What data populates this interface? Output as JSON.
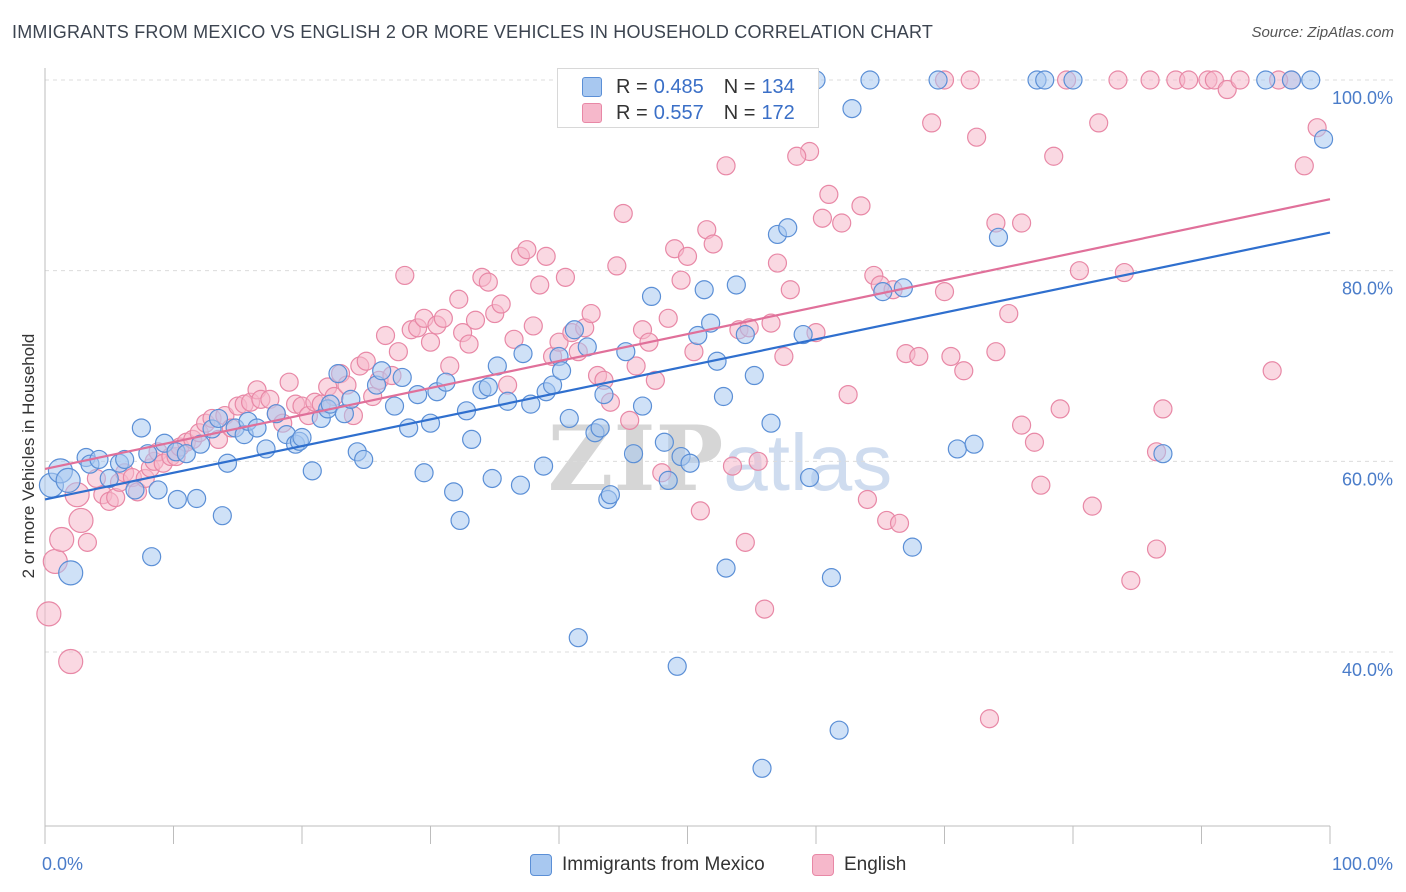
{
  "title": "IMMIGRANTS FROM MEXICO VS ENGLISH 2 OR MORE VEHICLES IN HOUSEHOLD CORRELATION CHART",
  "source": "Source: ZipAtlas.com",
  "watermark": "ZIPatlas",
  "colors": {
    "blue_fill": "#a8c8f0",
    "blue_stroke": "#5b8fd6",
    "blue_line": "#2f6fce",
    "pink_fill": "#f6b8cb",
    "pink_stroke": "#e888a6",
    "pink_line": "#e0709a",
    "tick": "#4a7cc9",
    "grid": "#dcdcdc"
  },
  "legend": {
    "rows": [
      {
        "r_label": "R =",
        "r_value": "0.485",
        "n_label": "N =",
        "n_value": "134"
      },
      {
        "r_label": "R =",
        "r_value": "0.557",
        "n_label": "N =",
        "n_value": "172"
      }
    ],
    "bottom": [
      "Immigrants from Mexico",
      "English"
    ]
  },
  "chart_data": {
    "type": "scatter",
    "title": "IMMIGRANTS FROM MEXICO VS ENGLISH 2 OR MORE VEHICLES IN HOUSEHOLD CORRELATION CHART",
    "xlabel": "",
    "ylabel": "2 or more Vehicles in Household",
    "xlim": [
      0,
      100
    ],
    "ylim": [
      20,
      102
    ],
    "x_tick_labels": [
      "0.0%",
      "100.0%"
    ],
    "y_ticks": [
      40,
      60,
      80,
      100
    ],
    "y_tick_labels": [
      "40.0%",
      "60.0%",
      "80.0%",
      "100.0%"
    ],
    "grid": "horizontal dashed",
    "legend_position": "top-center",
    "series": [
      {
        "name": "Immigrants from Mexico",
        "R": 0.485,
        "N": 134,
        "trend": [
          [
            0,
            56.0
          ],
          [
            100,
            84.0
          ]
        ],
        "points": [
          [
            0.5,
            57.5
          ],
          [
            1.2,
            59.0
          ],
          [
            1.8,
            58.0
          ],
          [
            2.0,
            48.3
          ],
          [
            3.2,
            60.4
          ],
          [
            3.5,
            59.7
          ],
          [
            4.2,
            60.2
          ],
          [
            5.0,
            58.2
          ],
          [
            5.8,
            59.8
          ],
          [
            6.2,
            60.2
          ],
          [
            7.0,
            57.0
          ],
          [
            7.5,
            63.5
          ],
          [
            8.0,
            60.8
          ],
          [
            8.3,
            50.0
          ],
          [
            8.8,
            57.0
          ],
          [
            9.3,
            61.9
          ],
          [
            10.2,
            61.0
          ],
          [
            10.3,
            56.0
          ],
          [
            11.0,
            60.8
          ],
          [
            11.8,
            56.1
          ],
          [
            12.1,
            61.8
          ],
          [
            13.0,
            63.4
          ],
          [
            13.5,
            64.5
          ],
          [
            13.8,
            54.3
          ],
          [
            14.2,
            59.8
          ],
          [
            14.8,
            63.5
          ],
          [
            15.5,
            62.8
          ],
          [
            15.8,
            64.2
          ],
          [
            16.5,
            63.5
          ],
          [
            17.2,
            61.3
          ],
          [
            18.0,
            65.0
          ],
          [
            18.8,
            62.8
          ],
          [
            19.5,
            61.8
          ],
          [
            19.8,
            62.1
          ],
          [
            20.0,
            62.5
          ],
          [
            20.8,
            59.0
          ],
          [
            21.5,
            64.5
          ],
          [
            22.0,
            65.5
          ],
          [
            22.2,
            66.0
          ],
          [
            22.8,
            69.2
          ],
          [
            23.3,
            65.0
          ],
          [
            23.8,
            66.5
          ],
          [
            24.3,
            61.0
          ],
          [
            24.8,
            60.2
          ],
          [
            25.8,
            68.0
          ],
          [
            26.2,
            69.5
          ],
          [
            27.2,
            65.8
          ],
          [
            27.8,
            68.8
          ],
          [
            28.3,
            63.5
          ],
          [
            29.0,
            67.0
          ],
          [
            29.5,
            58.8
          ],
          [
            30.0,
            64.0
          ],
          [
            30.5,
            67.3
          ],
          [
            31.2,
            68.3
          ],
          [
            31.8,
            56.8
          ],
          [
            32.3,
            53.8
          ],
          [
            32.8,
            65.3
          ],
          [
            33.2,
            62.3
          ],
          [
            34.0,
            67.5
          ],
          [
            34.5,
            67.8
          ],
          [
            34.8,
            58.2
          ],
          [
            35.2,
            70.0
          ],
          [
            36.0,
            66.3
          ],
          [
            37.0,
            57.5
          ],
          [
            37.2,
            71.3
          ],
          [
            37.8,
            66.0
          ],
          [
            38.8,
            59.5
          ],
          [
            39.0,
            67.3
          ],
          [
            39.5,
            68.0
          ],
          [
            40.0,
            71.0
          ],
          [
            40.2,
            69.5
          ],
          [
            40.8,
            64.5
          ],
          [
            41.2,
            73.8
          ],
          [
            41.5,
            41.5
          ],
          [
            42.2,
            72.0
          ],
          [
            42.8,
            63.0
          ],
          [
            43.5,
            67.0
          ],
          [
            43.8,
            56.0
          ],
          [
            43.2,
            63.5
          ],
          [
            44.0,
            56.5
          ],
          [
            45.2,
            71.5
          ],
          [
            45.8,
            60.8
          ],
          [
            46.5,
            65.8
          ],
          [
            47.2,
            77.3
          ],
          [
            48.2,
            62.0
          ],
          [
            48.5,
            58.0
          ],
          [
            49.2,
            38.5
          ],
          [
            49.5,
            60.5
          ],
          [
            50.2,
            59.8
          ],
          [
            50.8,
            73.2
          ],
          [
            51.3,
            78.0
          ],
          [
            51.8,
            74.5
          ],
          [
            52.3,
            70.5
          ],
          [
            52.8,
            66.8
          ],
          [
            53.0,
            48.8
          ],
          [
            53.8,
            78.5
          ],
          [
            54.5,
            73.3
          ],
          [
            55.2,
            69.0
          ],
          [
            55.8,
            27.8
          ],
          [
            56.5,
            64.0
          ],
          [
            57.0,
            83.8
          ],
          [
            57.8,
            84.5
          ],
          [
            59.0,
            73.3
          ],
          [
            59.5,
            58.3
          ],
          [
            61.2,
            47.8
          ],
          [
            61.8,
            31.8
          ],
          [
            62.8,
            97.0
          ],
          [
            64.2,
            100.0
          ],
          [
            65.2,
            77.8
          ],
          [
            66.8,
            78.2
          ],
          [
            67.5,
            51.0
          ],
          [
            69.5,
            100.0
          ],
          [
            71.0,
            61.3
          ],
          [
            72.3,
            61.8
          ],
          [
            74.2,
            83.5
          ],
          [
            77.2,
            100.0
          ],
          [
            77.8,
            100.0
          ],
          [
            87.0,
            60.8
          ],
          [
            95.0,
            100.0
          ],
          [
            97.0,
            100.0
          ],
          [
            98.5,
            100.0
          ],
          [
            99.5,
            93.8
          ],
          [
            56.0,
            100.0
          ],
          [
            60.0,
            100.0
          ],
          [
            47.0,
            100.0
          ],
          [
            80.0,
            100.0
          ]
        ]
      },
      {
        "name": "English",
        "R": 0.557,
        "N": 172,
        "trend": [
          [
            0,
            59.2
          ],
          [
            100,
            87.5
          ]
        ],
        "points": [
          [
            0.3,
            44.0
          ],
          [
            0.8,
            49.5
          ],
          [
            1.3,
            51.8
          ],
          [
            2.0,
            39.0
          ],
          [
            2.5,
            56.5
          ],
          [
            2.8,
            53.8
          ],
          [
            3.3,
            51.5
          ],
          [
            4.0,
            58.2
          ],
          [
            4.5,
            56.5
          ],
          [
            5.0,
            55.8
          ],
          [
            5.5,
            56.2
          ],
          [
            5.8,
            57.8
          ],
          [
            6.2,
            58.8
          ],
          [
            6.8,
            58.3
          ],
          [
            7.2,
            56.8
          ],
          [
            7.8,
            58.2
          ],
          [
            8.2,
            59.3
          ],
          [
            8.5,
            60.0
          ],
          [
            8.8,
            61.0
          ],
          [
            9.2,
            59.8
          ],
          [
            9.8,
            60.5
          ],
          [
            10.2,
            60.5
          ],
          [
            10.5,
            61.5
          ],
          [
            11.0,
            62.0
          ],
          [
            11.5,
            62.3
          ],
          [
            12.0,
            63.0
          ],
          [
            12.5,
            64.0
          ],
          [
            13.0,
            64.5
          ],
          [
            13.5,
            62.3
          ],
          [
            14.0,
            64.8
          ],
          [
            14.5,
            63.5
          ],
          [
            15.0,
            65.8
          ],
          [
            15.5,
            66.0
          ],
          [
            16.0,
            66.2
          ],
          [
            16.5,
            67.5
          ],
          [
            16.8,
            66.5
          ],
          [
            17.5,
            66.5
          ],
          [
            18.0,
            65.0
          ],
          [
            18.5,
            64.0
          ],
          [
            19.0,
            68.3
          ],
          [
            19.5,
            66.0
          ],
          [
            20.0,
            65.8
          ],
          [
            20.5,
            64.8
          ],
          [
            21.0,
            66.2
          ],
          [
            21.5,
            66.0
          ],
          [
            22.0,
            67.8
          ],
          [
            22.5,
            66.8
          ],
          [
            23.0,
            69.2
          ],
          [
            23.5,
            68.0
          ],
          [
            24.0,
            64.8
          ],
          [
            24.5,
            70.0
          ],
          [
            25.0,
            70.5
          ],
          [
            25.5,
            66.8
          ],
          [
            26.0,
            68.5
          ],
          [
            26.5,
            73.2
          ],
          [
            27.0,
            69.0
          ],
          [
            27.5,
            71.5
          ],
          [
            28.0,
            79.5
          ],
          [
            28.5,
            73.8
          ],
          [
            29.0,
            74.0
          ],
          [
            29.5,
            75.0
          ],
          [
            30.0,
            72.5
          ],
          [
            30.5,
            74.3
          ],
          [
            31.0,
            75.0
          ],
          [
            31.5,
            70.0
          ],
          [
            32.2,
            77.0
          ],
          [
            32.5,
            73.5
          ],
          [
            33.0,
            72.3
          ],
          [
            33.5,
            74.8
          ],
          [
            34.0,
            79.3
          ],
          [
            34.5,
            78.8
          ],
          [
            35.0,
            75.5
          ],
          [
            35.5,
            76.5
          ],
          [
            36.0,
            68.0
          ],
          [
            36.5,
            72.8
          ],
          [
            37.0,
            81.5
          ],
          [
            37.5,
            82.2
          ],
          [
            38.0,
            74.2
          ],
          [
            38.5,
            78.5
          ],
          [
            39.0,
            81.5
          ],
          [
            39.5,
            71.0
          ],
          [
            40.0,
            72.5
          ],
          [
            40.5,
            79.3
          ],
          [
            41.0,
            73.5
          ],
          [
            41.5,
            71.5
          ],
          [
            42.0,
            74.0
          ],
          [
            42.5,
            75.5
          ],
          [
            43.0,
            69.0
          ],
          [
            43.5,
            68.5
          ],
          [
            44.0,
            66.2
          ],
          [
            44.5,
            80.5
          ],
          [
            45.0,
            86.0
          ],
          [
            45.5,
            64.3
          ],
          [
            46.0,
            70.0
          ],
          [
            46.5,
            73.8
          ],
          [
            47.0,
            72.5
          ],
          [
            47.5,
            68.5
          ],
          [
            48.0,
            58.8
          ],
          [
            48.5,
            75.0
          ],
          [
            49.0,
            82.3
          ],
          [
            49.5,
            79.0
          ],
          [
            50.0,
            81.5
          ],
          [
            50.5,
            71.5
          ],
          [
            51.0,
            54.8
          ],
          [
            51.5,
            84.3
          ],
          [
            52.0,
            82.8
          ],
          [
            53.0,
            91.0
          ],
          [
            53.5,
            59.5
          ],
          [
            54.0,
            73.8
          ],
          [
            54.5,
            51.5
          ],
          [
            55.5,
            60.0
          ],
          [
            56.0,
            44.5
          ],
          [
            56.5,
            74.5
          ],
          [
            57.0,
            80.8
          ],
          [
            57.5,
            71.0
          ],
          [
            58.0,
            78.0
          ],
          [
            59.5,
            92.5
          ],
          [
            60.0,
            73.5
          ],
          [
            61.0,
            88.0
          ],
          [
            62.0,
            85.0
          ],
          [
            63.5,
            86.8
          ],
          [
            64.0,
            56.0
          ],
          [
            64.5,
            79.5
          ],
          [
            65.0,
            78.5
          ],
          [
            65.5,
            53.8
          ],
          [
            66.0,
            78.0
          ],
          [
            67.0,
            71.3
          ],
          [
            68.0,
            71.0
          ],
          [
            69.0,
            95.5
          ],
          [
            70.0,
            77.8
          ],
          [
            70.5,
            71.0
          ],
          [
            71.5,
            69.5
          ],
          [
            72.0,
            100.0
          ],
          [
            72.5,
            94.0
          ],
          [
            73.5,
            33.0
          ],
          [
            74.0,
            71.5
          ],
          [
            75.0,
            75.5
          ],
          [
            76.0,
            63.8
          ],
          [
            77.0,
            62.0
          ],
          [
            77.5,
            57.5
          ],
          [
            78.5,
            92.0
          ],
          [
            79.0,
            65.5
          ],
          [
            79.5,
            100.0
          ],
          [
            80.5,
            80.0
          ],
          [
            81.5,
            55.3
          ],
          [
            82.0,
            95.5
          ],
          [
            83.5,
            100.0
          ],
          [
            84.5,
            47.5
          ],
          [
            86.5,
            50.8
          ],
          [
            87.0,
            65.5
          ],
          [
            88.0,
            100.0
          ],
          [
            89.0,
            100.0
          ],
          [
            90.5,
            100.0
          ],
          [
            91.0,
            100.0
          ],
          [
            92.0,
            99.0
          ],
          [
            93.0,
            100.0
          ],
          [
            95.5,
            69.5
          ],
          [
            97.0,
            100.0
          ],
          [
            98.0,
            91.0
          ],
          [
            99.0,
            95.0
          ],
          [
            60.5,
            85.5
          ],
          [
            70.0,
            100.0
          ],
          [
            74.0,
            85.0
          ],
          [
            76.0,
            85.0
          ],
          [
            84.0,
            79.8
          ],
          [
            86.0,
            100.0
          ],
          [
            66.5,
            53.5
          ],
          [
            62.5,
            67.0
          ],
          [
            54.8,
            74.0
          ],
          [
            58.5,
            92.0
          ],
          [
            86.5,
            61.0
          ],
          [
            96.0,
            100.0
          ]
        ]
      }
    ]
  }
}
